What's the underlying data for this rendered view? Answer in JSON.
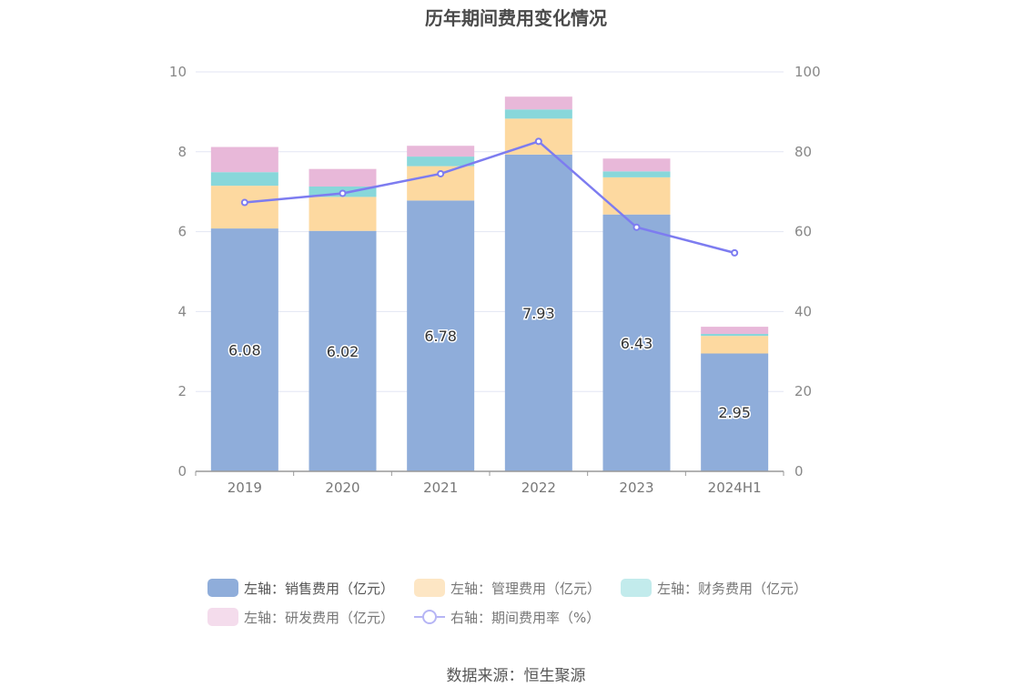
{
  "title": "历年期间费用变化情况",
  "source": "数据来源：恒生聚源",
  "colors": {
    "sales": "#8fadda",
    "admin": "#fdd9a0",
    "finance": "#88d7da",
    "rd": "#e8b8d9",
    "rate": "#7d7cf0"
  },
  "legend": [
    {
      "label": "左轴：销售费用（亿元）",
      "key": "sales"
    },
    {
      "label": "左轴：管理费用（亿元）",
      "key": "admin"
    },
    {
      "label": "左轴：财务费用（亿元）",
      "key": "finance"
    },
    {
      "label": "左轴：研发费用（亿元）",
      "key": "rd"
    },
    {
      "label": "右轴：期间费用率（%）",
      "key": "rate"
    }
  ],
  "chart_data": {
    "type": "bar",
    "title": "历年期间费用变化情况",
    "categories": [
      "2019",
      "2020",
      "2021",
      "2022",
      "2023",
      "2024H1"
    ],
    "series": [
      {
        "name": "左轴：销售费用（亿元）",
        "key": "sales",
        "axis": "left",
        "values": [
          6.08,
          6.02,
          6.78,
          7.93,
          6.43,
          2.95
        ],
        "labels": [
          "6.08",
          "6.02",
          "6.78",
          "7.93",
          "6.43",
          "2.95"
        ]
      },
      {
        "name": "左轴：管理费用（亿元）",
        "key": "admin",
        "axis": "left",
        "values": [
          1.07,
          0.85,
          0.86,
          0.9,
          0.93,
          0.44
        ]
      },
      {
        "name": "左轴：财务费用（亿元）",
        "key": "finance",
        "axis": "left",
        "values": [
          0.34,
          0.26,
          0.24,
          0.23,
          0.15,
          0.05
        ]
      },
      {
        "name": "左轴：研发费用（亿元）",
        "key": "rd",
        "axis": "left",
        "values": [
          0.63,
          0.44,
          0.27,
          0.32,
          0.32,
          0.18
        ]
      },
      {
        "name": "右轴：期间费用率（%）",
        "key": "rate",
        "axis": "right",
        "type": "line",
        "values": [
          67.3,
          69.6,
          74.5,
          82.6,
          61.1,
          54.7
        ]
      }
    ],
    "y_left": {
      "min": 0,
      "max": 10,
      "ticks": [
        "0",
        "2",
        "4",
        "6",
        "8",
        "10"
      ]
    },
    "y_right": {
      "min": 0,
      "max": 100,
      "ticks": [
        "0",
        "20",
        "40",
        "60",
        "80",
        "100"
      ]
    },
    "xlabel": "",
    "ylabel": "",
    "grid": true
  }
}
